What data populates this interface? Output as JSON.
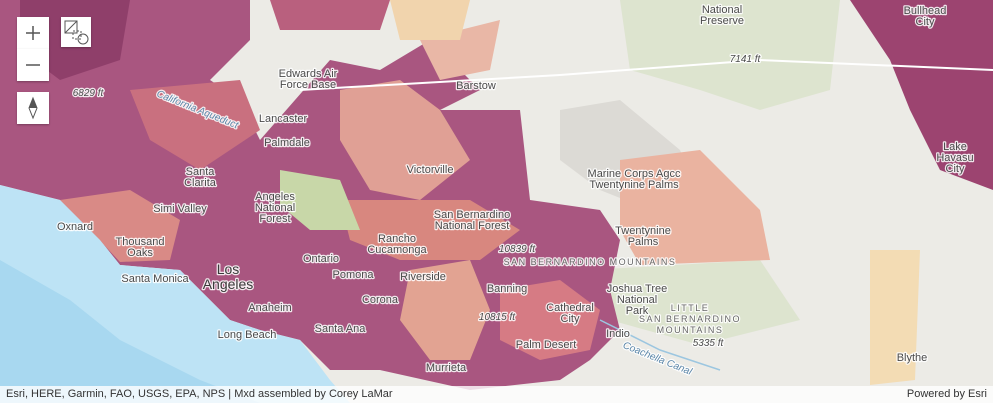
{
  "map": {
    "labels": [
      {
        "lines": [
          "National",
          "Preserve"
        ]
      },
      {
        "lines": [
          "7141 ft"
        ]
      },
      {
        "lines": [
          "Bullhead",
          "City"
        ]
      },
      {
        "lines": [
          "Edwards Air",
          "Force Base"
        ]
      },
      {
        "lines": [
          "Barstow"
        ]
      },
      {
        "lines": [
          "6829 ft"
        ]
      },
      {
        "lines": [
          "Lancaster"
        ]
      },
      {
        "lines": [
          "Palmdale"
        ]
      },
      {
        "lines": [
          "Victorville"
        ]
      },
      {
        "lines": [
          "Marine Corps Agcc",
          "Twentynine Palms"
        ]
      },
      {
        "lines": [
          "Santa",
          "Clarita"
        ]
      },
      {
        "lines": [
          "Angeles",
          "National",
          "Forest"
        ]
      },
      {
        "lines": [
          "Simi Valley"
        ]
      },
      {
        "lines": [
          "Oxnard"
        ]
      },
      {
        "lines": [
          "San Bernardino",
          "National Forest"
        ]
      },
      {
        "lines": [
          "Twentynine",
          "Palms"
        ]
      },
      {
        "lines": [
          "Thousand",
          "Oaks"
        ]
      },
      {
        "lines": [
          "Rancho",
          "Cucamonga"
        ]
      },
      {
        "lines": [
          "10839 ft"
        ]
      },
      {
        "lines": [
          "SAN BERNARDINO MOUNTAINS"
        ]
      },
      {
        "lines": [
          "Ontario"
        ]
      },
      {
        "lines": [
          "Pomona"
        ]
      },
      {
        "lines": [
          "Riverside"
        ]
      },
      {
        "lines": [
          "Santa Monica"
        ]
      },
      {
        "lines": [
          "Los",
          "Angeles"
        ]
      },
      {
        "lines": [
          "Joshua Tree",
          "National",
          "Park"
        ]
      },
      {
        "lines": [
          "Banning"
        ]
      },
      {
        "lines": [
          "LITTLE",
          "SAN BERNARDINO",
          "MOUNTAINS"
        ]
      },
      {
        "lines": [
          "Anaheim"
        ]
      },
      {
        "lines": [
          "Corona"
        ]
      },
      {
        "lines": [
          "Cathedral",
          "City"
        ]
      },
      {
        "lines": [
          "Indio"
        ]
      },
      {
        "lines": [
          "10815 ft"
        ]
      },
      {
        "lines": [
          "Santa Ana"
        ]
      },
      {
        "lines": [
          "Long Beach"
        ]
      },
      {
        "lines": [
          "Palm Desert"
        ]
      },
      {
        "lines": [
          "5335 ft"
        ]
      },
      {
        "lines": [
          "Coachella Canal"
        ]
      },
      {
        "lines": [
          "Murrieta"
        ]
      },
      {
        "lines": [
          "Blythe"
        ]
      },
      {
        "lines": [
          "Lake",
          "Havasu",
          "City"
        ]
      },
      {
        "lines": [
          "California Aqueduct"
        ]
      }
    ],
    "attribution": "Esri, HERE, Garmin, FAO, USGS, EPA, NPS | Mxd assembled by Corey LaMar",
    "powered_by": "Powered by Esri"
  }
}
